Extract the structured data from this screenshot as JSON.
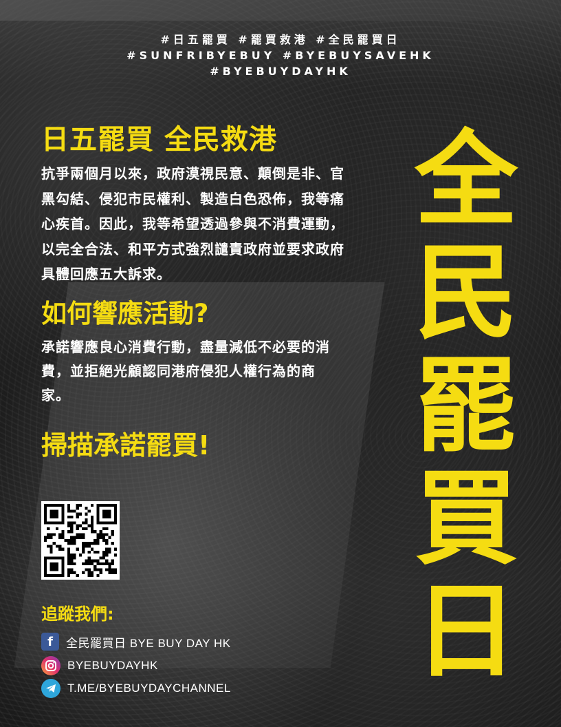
{
  "hashtags": {
    "line1": "#日五罷買 #罷買救港 #全民罷買日",
    "line2": "#SUNFRIBYEBUY #BYEBUYSAVEHK",
    "line3": "#BYEBUYDAYHK"
  },
  "headline": "日五罷買 全民救港",
  "intro": "抗爭兩個月以來，政府漠視民意、顛倒是非、官黑勾結、侵犯市民權利、製造白色恐佈，我等痛心疾首。因此，我等希望透過參與不消費運動，以完全合法、和平方式強烈譴責政府並要求政府具體回應五大訴求。",
  "how_title": "如何響應活動?",
  "how_body": "承諾響應良心消費行動，盡量減低不必要的消費，並拒絕光顧認同港府侵犯人權行為的商家。",
  "scan_title": "掃描承諾罷買!",
  "follow_title": "追蹤我們:",
  "social": {
    "facebook": "全民罷買日 BYE BUY DAY HK",
    "instagram": "BYEBUYDAYHK",
    "telegram": "T.ME/BYEBUYDAYCHANNEL"
  },
  "vertical_title": [
    "全",
    "民",
    "罷",
    "買",
    "日"
  ],
  "colors": {
    "accent": "#f5dc12",
    "text": "#ffffff",
    "background": "#1b1b1b"
  },
  "icons": [
    "facebook-icon",
    "instagram-icon",
    "telegram-icon",
    "qr-code"
  ]
}
